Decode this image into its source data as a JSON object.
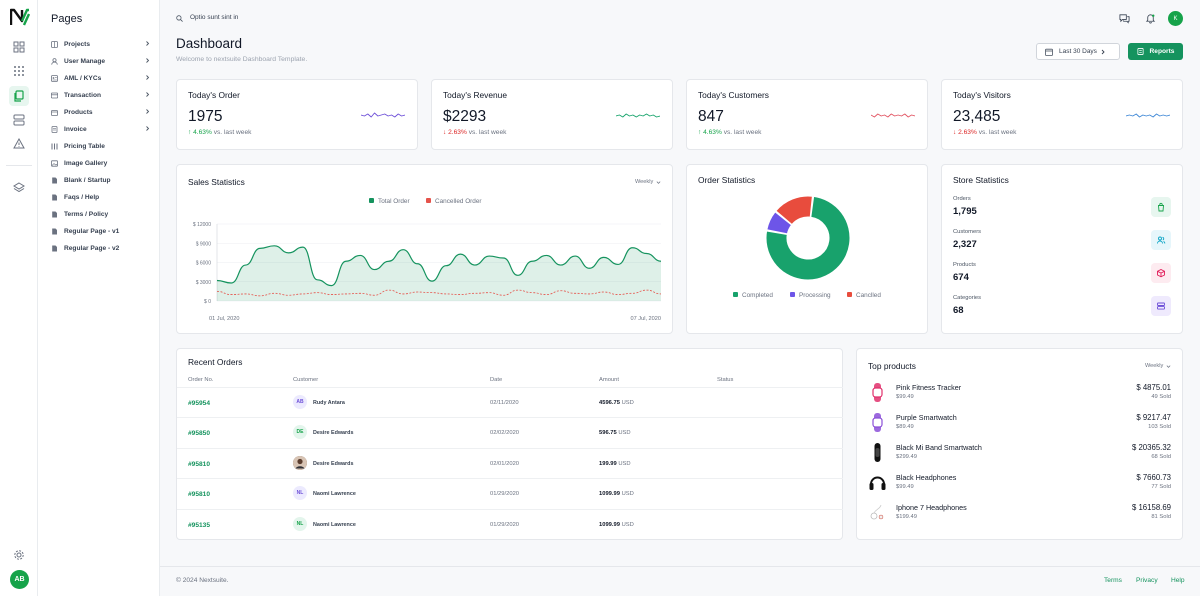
{
  "sidebar": {
    "title": "Pages",
    "items": [
      {
        "label": "Projects",
        "icon": "projects-icon",
        "chevron": true
      },
      {
        "label": "User Manage",
        "icon": "user-icon",
        "chevron": true
      },
      {
        "label": "AML / KYCs",
        "icon": "kyc-icon",
        "chevron": true
      },
      {
        "label": "Transaction",
        "icon": "card-icon",
        "chevron": true
      },
      {
        "label": "Products",
        "icon": "box-icon",
        "chevron": true
      },
      {
        "label": "Invoice",
        "icon": "invoice-icon",
        "chevron": true
      },
      {
        "label": "Pricing Table",
        "icon": "pricing-icon",
        "chevron": false
      },
      {
        "label": "Image Gallery",
        "icon": "image-icon",
        "chevron": false
      },
      {
        "label": "Blank / Startup",
        "icon": "file-icon",
        "chevron": false
      },
      {
        "label": "Faqs / Help",
        "icon": "file-icon",
        "chevron": false
      },
      {
        "label": "Terms / Policy",
        "icon": "file-icon",
        "chevron": false
      },
      {
        "label": "Regular Page - v1",
        "icon": "file-icon",
        "chevron": false
      },
      {
        "label": "Regular Page - v2",
        "icon": "file-icon",
        "chevron": false
      }
    ]
  },
  "rail": {
    "avatar": "AB"
  },
  "header": {
    "search_text": "Optio sunt sint in",
    "avatar": "K"
  },
  "page": {
    "title": "Dashboard",
    "subtitle": "Welcome to nextsuite Dashboard Template.",
    "date_range": "Last 30 Days",
    "reports_label": "Reports"
  },
  "stats": [
    {
      "title": "Today's Order",
      "value": "1975",
      "change": "4.63%",
      "direction": "up",
      "suffix": "vs. last week",
      "spark_color": "#6d4fd8"
    },
    {
      "title": "Today's Revenue",
      "value": "$2293",
      "change": "2.63%",
      "direction": "down",
      "suffix": "vs. last week",
      "spark_color": "#16a36b"
    },
    {
      "title": "Today's Customers",
      "value": "847",
      "change": "4.63%",
      "direction": "up",
      "suffix": "vs. last week",
      "spark_color": "#e25563"
    },
    {
      "title": "Today's Visitors",
      "value": "23,485",
      "change": "2.63%",
      "direction": "down",
      "suffix": "vs. last week",
      "spark_color": "#3f88d6"
    }
  ],
  "sales": {
    "title": "Sales Statistics",
    "period": "Weekly",
    "legend": [
      "Total Order",
      "Cancelled Order"
    ],
    "colors": {
      "total": "#15935e",
      "cancelled": "#e5534b"
    }
  },
  "chart_data": [
    {
      "type": "area",
      "title": "Sales Statistics",
      "ylim": [
        0,
        12000
      ],
      "yticks": [
        "$ 12000",
        "$ 9000",
        "$ 6000",
        "$ 3000",
        "$ 0"
      ],
      "xlabels": [
        "01 Jul, 2020",
        "07 Jul, 2020"
      ],
      "series": [
        {
          "name": "Total Order",
          "values": [
            3200,
            2800,
            5600,
            8200,
            8600,
            7500,
            8400,
            3300,
            2400,
            6200,
            7100,
            4900,
            6200,
            8000,
            5800,
            3100,
            5500,
            7300,
            5600,
            7000,
            6700,
            4000,
            6200,
            7100,
            5600,
            7000,
            5100,
            6800,
            5700,
            8300,
            7400,
            6200
          ]
        },
        {
          "name": "Cancelled Order",
          "values": [
            1500,
            1000,
            1100,
            800,
            1200,
            900,
            1100,
            1300,
            1000,
            1100,
            1200,
            900,
            1700,
            1100,
            1400,
            1300,
            1100,
            1000,
            1200,
            1300,
            900,
            1700,
            1300,
            1000,
            1600,
            1200,
            1100,
            1400,
            1000,
            1200,
            1700,
            1100
          ]
        }
      ]
    },
    {
      "type": "pie",
      "title": "Order Statistics",
      "categories": [
        "Completed",
        "Processing",
        "Canclled"
      ],
      "values": [
        76,
        8,
        16
      ],
      "colors": [
        "#18a26c",
        "#6d55e8",
        "#e84c3d"
      ]
    }
  ],
  "orders_stats": {
    "title": "Order Statistics",
    "legend": [
      "Completed",
      "Processing",
      "Canclled"
    ]
  },
  "store": {
    "title": "Store Statistics",
    "items": [
      {
        "label": "Orders",
        "value": "1,795",
        "icon": "bag-icon",
        "bg": "#e7f6ef",
        "fg": "#16a34a"
      },
      {
        "label": "Customers",
        "value": "2,327",
        "icon": "users-icon",
        "bg": "#e6f6fb",
        "fg": "#0ea5c6"
      },
      {
        "label": "Products",
        "value": "674",
        "icon": "cube-icon",
        "bg": "#fdebf0",
        "fg": "#e11d5a"
      },
      {
        "label": "Categories",
        "value": "68",
        "icon": "stack-icon",
        "bg": "#efeafd",
        "fg": "#6d4fd8"
      }
    ]
  },
  "recent": {
    "title": "Recent Orders",
    "headers": [
      "Order No.",
      "Customer",
      "Date",
      "Amount",
      "Status"
    ],
    "rows": [
      {
        "id": "#95954",
        "initials": "AB",
        "avbg": "#eceafe",
        "avfg": "#6d4fd8",
        "name": "Rudy Antara",
        "date": "02/11/2020",
        "amount": "4596.75",
        "currency": "USD"
      },
      {
        "id": "#95850",
        "initials": "DE",
        "avbg": "#e3f5ec",
        "avfg": "#16a34a",
        "name": "Desire Edwards",
        "date": "02/02/2020",
        "amount": "596.75",
        "currency": "USD"
      },
      {
        "id": "#95810",
        "initials": "",
        "avbg": "#7a5d4e",
        "avfg": "#ffffff",
        "name": "Desire Edwards",
        "date": "02/01/2020",
        "amount": "199.99",
        "currency": "USD"
      },
      {
        "id": "#95810",
        "initials": "NL",
        "avbg": "#eceafe",
        "avfg": "#6d4fd8",
        "name": "Naomi Lawrence",
        "date": "01/29/2020",
        "amount": "1099.99",
        "currency": "USD"
      },
      {
        "id": "#95135",
        "initials": "NL",
        "avbg": "#e3f5ec",
        "avfg": "#16a34a",
        "name": "Naomi Lawrence",
        "date": "01/29/2020",
        "amount": "1099.99",
        "currency": "USD"
      }
    ]
  },
  "top": {
    "title": "Top products",
    "period": "Weekly",
    "items": [
      {
        "name": "Pink Fitness Tracker",
        "price": "$99.49",
        "total": "$ 4875.01",
        "sold": "49 Sold",
        "color": "#e1306c"
      },
      {
        "name": "Purple Smartwatch",
        "price": "$89.49",
        "total": "$ 9217.47",
        "sold": "103 Sold",
        "color": "#8b4fd8"
      },
      {
        "name": "Black Mi Band Smartwatch",
        "price": "$299.49",
        "total": "$ 20365.32",
        "sold": "68 Sold",
        "color": "#111111"
      },
      {
        "name": "Black Headphones",
        "price": "$99.49",
        "total": "$ 7660.73",
        "sold": "77 Sold",
        "color": "#222222"
      },
      {
        "name": "Iphone 7 Headphones",
        "price": "$199.49",
        "total": "$ 16158.69",
        "sold": "81 Sold",
        "color": "#d4d4d4"
      }
    ]
  },
  "footer": {
    "copy": "© 2024 Nextsuite.",
    "links": [
      "Terms",
      "Privacy",
      "Help"
    ]
  }
}
